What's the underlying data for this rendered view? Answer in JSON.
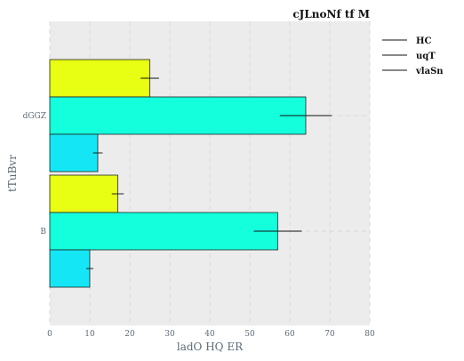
{
  "chart_data": {
    "type": "bar",
    "orientation": "horizontal",
    "title": "cJLnoNf tf M",
    "xlabel": "ladO  HQ ER",
    "ylabel": "tTuBvr",
    "xlim": [
      0,
      80
    ],
    "xticks": [
      0,
      10,
      20,
      30,
      40,
      50,
      60,
      70,
      80
    ],
    "categories": [
      "B",
      "dGGZ"
    ],
    "grid": true,
    "legend_placement": "right",
    "series": [
      {
        "name": "HC",
        "color": "#e8ff14",
        "values": [
          17,
          25
        ],
        "errors": [
          1.5,
          2.3
        ]
      },
      {
        "name": "uqT",
        "color": "#14ffdc",
        "values": [
          57,
          64
        ],
        "errors": [
          6,
          6.5
        ]
      },
      {
        "name": "vlaSn",
        "color": "#14e6f5",
        "values": [
          10,
          12
        ],
        "errors": [
          0.9,
          1.2
        ]
      }
    ],
    "colors": {
      "plot_bg": "#ececec",
      "grid": "#d9d9d9",
      "axis_text": "#5b6b78"
    }
  }
}
